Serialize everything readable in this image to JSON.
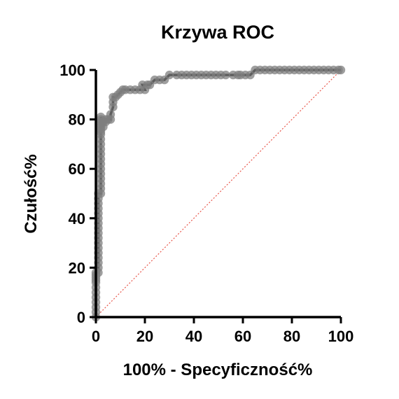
{
  "chart_data": {
    "type": "line",
    "title": "Krzywa ROC",
    "xlabel": "100% - Specyficzność%",
    "ylabel": "Czułość%",
    "xlim": [
      0,
      100
    ],
    "ylim": [
      0,
      100
    ],
    "xticks": [
      "0",
      "20",
      "40",
      "60",
      "80",
      "100"
    ],
    "yticks": [
      "0",
      "20",
      "40",
      "60",
      "80",
      "100"
    ],
    "grid": false,
    "legend": "none",
    "colors": {
      "curve": "#000000",
      "marker": "#7f7f7f",
      "reference": "#e8564a"
    },
    "reference_line": {
      "style": "dotted",
      "x": [
        0,
        100
      ],
      "y": [
        0,
        100
      ]
    },
    "series": [
      {
        "x": [
          0,
          0,
          0,
          0,
          0,
          0,
          0,
          0,
          0,
          0,
          0,
          0,
          1,
          1,
          1,
          1,
          1,
          1,
          1,
          1,
          1,
          1,
          1,
          1,
          1,
          1,
          1,
          1,
          1,
          2,
          2,
          2,
          2,
          2,
          2,
          2,
          2,
          2,
          2,
          2,
          2,
          2,
          2,
          2,
          2,
          2,
          2,
          2,
          2,
          3,
          3,
          4,
          4,
          5,
          6,
          6,
          7,
          7,
          7,
          8,
          9,
          10,
          11,
          12,
          14,
          16,
          18,
          20,
          19,
          21,
          22,
          24,
          26,
          28,
          30,
          33,
          35,
          37,
          39,
          41,
          43,
          45,
          47,
          49,
          51,
          53,
          56,
          58,
          59,
          61,
          63,
          65,
          67,
          69,
          71,
          73,
          75,
          77,
          79,
          81,
          83,
          85,
          87,
          89,
          91,
          93,
          95,
          97,
          99,
          100
        ],
        "y": [
          0,
          2,
          4,
          6,
          8,
          10,
          12,
          14,
          15,
          16,
          17,
          18,
          18,
          20,
          22,
          24,
          26,
          28,
          30,
          32,
          34,
          36,
          38,
          40,
          42,
          44,
          46,
          48,
          50,
          50,
          52,
          54,
          56,
          58,
          60,
          62,
          64,
          66,
          68,
          70,
          72,
          74,
          75,
          76,
          77,
          78,
          79,
          80,
          81,
          77,
          79,
          79,
          80,
          80,
          80,
          82,
          85,
          87,
          89,
          89,
          90,
          91,
          92,
          92,
          92,
          92,
          92,
          92,
          94,
          94,
          94,
          96,
          96,
          96,
          98,
          98,
          98,
          98,
          98,
          98,
          98,
          98,
          98,
          98,
          98,
          98,
          98,
          98,
          98,
          98,
          98,
          100,
          100,
          100,
          100,
          100,
          100,
          100,
          100,
          100,
          100,
          100,
          100,
          100,
          100,
          100,
          100,
          100,
          100,
          100
        ]
      }
    ]
  }
}
